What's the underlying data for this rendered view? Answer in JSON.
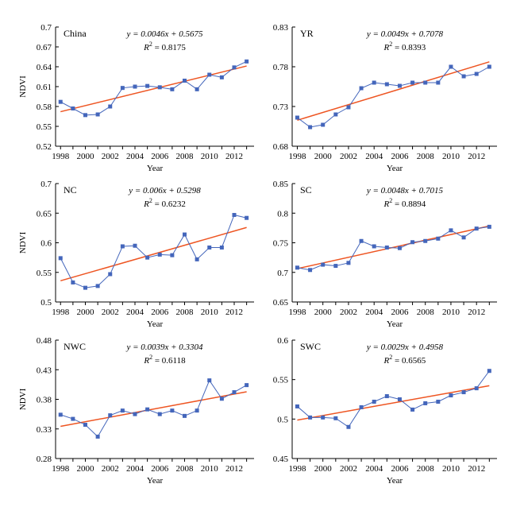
{
  "style": {
    "series_color": "#4466bb",
    "fit_color": "#ee5522"
  },
  "chart_data": [
    {
      "type": "line",
      "region": "China",
      "equation": "y = 0.0046x + 0.5675",
      "r2_label": "R",
      "r2_value": " = 0.8175",
      "xlabel": "Year",
      "ylabel": "NDVI",
      "x": [
        1998,
        1999,
        2000,
        2001,
        2002,
        2003,
        2004,
        2005,
        2006,
        2007,
        2008,
        2009,
        2010,
        2011,
        2012,
        2013
      ],
      "values": [
        0.587,
        0.577,
        0.567,
        0.568,
        0.58,
        0.608,
        0.61,
        0.611,
        0.609,
        0.606,
        0.619,
        0.606,
        0.628,
        0.624,
        0.639,
        0.648
      ],
      "fit": {
        "slope": 0.0046,
        "intercept": 0.5675
      },
      "xlim": [
        1997.6,
        2013.6
      ],
      "ylim": [
        0.52,
        0.7
      ],
      "xticks": [
        "1998",
        "2000",
        "2002",
        "2004",
        "2006",
        "2008",
        "2010",
        "2012"
      ],
      "yticks": [
        "0.52",
        "0.55",
        "0.58",
        "0.61",
        "0.64",
        "0.67",
        "0.7"
      ]
    },
    {
      "type": "line",
      "region": "YR",
      "equation": "y = 0.0049x + 0.7078",
      "r2_label": "R",
      "r2_value": " = 0.8393",
      "xlabel": "Year",
      "ylabel": "",
      "x": [
        1998,
        1999,
        2000,
        2001,
        2002,
        2003,
        2004,
        2005,
        2006,
        2007,
        2008,
        2009,
        2010,
        2011,
        2012,
        2013
      ],
      "values": [
        0.716,
        0.704,
        0.707,
        0.72,
        0.729,
        0.753,
        0.76,
        0.758,
        0.756,
        0.76,
        0.76,
        0.76,
        0.78,
        0.768,
        0.771,
        0.78
      ],
      "fit": {
        "slope": 0.0049,
        "intercept": 0.7078
      },
      "xlim": [
        1997.6,
        2013.6
      ],
      "ylim": [
        0.68,
        0.83
      ],
      "xticks": [
        "1998",
        "2000",
        "2002",
        "2004",
        "2006",
        "2008",
        "2010",
        "2012"
      ],
      "yticks": [
        "0.68",
        "0.73",
        "0.78",
        "0.83"
      ]
    },
    {
      "type": "line",
      "region": "NC",
      "equation": "y = 0.006x + 0.5298",
      "r2_label": "R",
      "r2_value": " = 0.6232",
      "xlabel": "Year",
      "ylabel": "NDVI",
      "x": [
        1998,
        1999,
        2000,
        2001,
        2002,
        2003,
        2004,
        2005,
        2006,
        2007,
        2008,
        2009,
        2010,
        2011,
        2012,
        2013
      ],
      "values": [
        0.574,
        0.533,
        0.524,
        0.527,
        0.547,
        0.594,
        0.595,
        0.575,
        0.58,
        0.579,
        0.614,
        0.572,
        0.592,
        0.592,
        0.647,
        0.642
      ],
      "fit": {
        "slope": 0.006,
        "intercept": 0.5298
      },
      "xlim": [
        1997.6,
        2013.6
      ],
      "ylim": [
        0.5,
        0.7
      ],
      "xticks": [
        "1998",
        "2000",
        "2002",
        "2004",
        "2006",
        "2008",
        "2010",
        "2012"
      ],
      "yticks": [
        "0.5",
        "0.55",
        "0.6",
        "0.65",
        "0.7"
      ]
    },
    {
      "type": "line",
      "region": "SC",
      "equation": "y = 0.0048x + 0.7015",
      "r2_label": "R",
      "r2_value": " = 0.8894",
      "xlabel": "Year",
      "ylabel": "",
      "x": [
        1998,
        1999,
        2000,
        2001,
        2002,
        2003,
        2004,
        2005,
        2006,
        2007,
        2008,
        2009,
        2010,
        2011,
        2012,
        2013
      ],
      "values": [
        0.708,
        0.704,
        0.713,
        0.711,
        0.716,
        0.753,
        0.744,
        0.742,
        0.741,
        0.751,
        0.753,
        0.757,
        0.771,
        0.759,
        0.774,
        0.777
      ],
      "fit": {
        "slope": 0.0048,
        "intercept": 0.7015
      },
      "xlim": [
        1997.6,
        2013.6
      ],
      "ylim": [
        0.65,
        0.85
      ],
      "xticks": [
        "1998",
        "2000",
        "2002",
        "2004",
        "2006",
        "2008",
        "2010",
        "2012"
      ],
      "yticks": [
        "0.65",
        "0.7",
        "0.75",
        "0.8",
        "0.85"
      ]
    },
    {
      "type": "line",
      "region": "NWC",
      "equation": "y = 0.0039x + 0.3304",
      "r2_label": "R",
      "r2_value": " = 0.6118",
      "xlabel": "Year",
      "ylabel": "NDVI",
      "x": [
        1998,
        1999,
        2000,
        2001,
        2002,
        2003,
        2004,
        2005,
        2006,
        2007,
        2008,
        2009,
        2010,
        2011,
        2012,
        2013
      ],
      "values": [
        0.354,
        0.347,
        0.337,
        0.317,
        0.353,
        0.361,
        0.355,
        0.363,
        0.355,
        0.361,
        0.352,
        0.361,
        0.412,
        0.381,
        0.392,
        0.404
      ],
      "fit": {
        "slope": 0.0039,
        "intercept": 0.3304
      },
      "xlim": [
        1997.6,
        2013.6
      ],
      "ylim": [
        0.28,
        0.48
      ],
      "xticks": [
        "1998",
        "2000",
        "2002",
        "2004",
        "2006",
        "2008",
        "2010",
        "2012"
      ],
      "yticks": [
        "0.28",
        "0.33",
        "0.38",
        "0.43",
        "0.48"
      ]
    },
    {
      "type": "line",
      "region": "SWC",
      "equation": "y = 0.0029x + 0.4958",
      "r2_label": "R",
      "r2_value": " = 0.6565",
      "xlabel": "Year",
      "ylabel": "",
      "x": [
        1998,
        1999,
        2000,
        2001,
        2002,
        2003,
        2004,
        2005,
        2006,
        2007,
        2008,
        2009,
        2010,
        2011,
        2012,
        2013
      ],
      "values": [
        0.516,
        0.502,
        0.502,
        0.501,
        0.49,
        0.515,
        0.522,
        0.529,
        0.525,
        0.512,
        0.52,
        0.522,
        0.53,
        0.534,
        0.539,
        0.561
      ],
      "fit": {
        "slope": 0.0029,
        "intercept": 0.4958
      },
      "xlim": [
        1997.6,
        2013.6
      ],
      "ylim": [
        0.45,
        0.6
      ],
      "xticks": [
        "1998",
        "2000",
        "2002",
        "2004",
        "2006",
        "2008",
        "2010",
        "2012"
      ],
      "yticks": [
        "0.45",
        "0.5",
        "0.55",
        "0.6"
      ]
    }
  ]
}
